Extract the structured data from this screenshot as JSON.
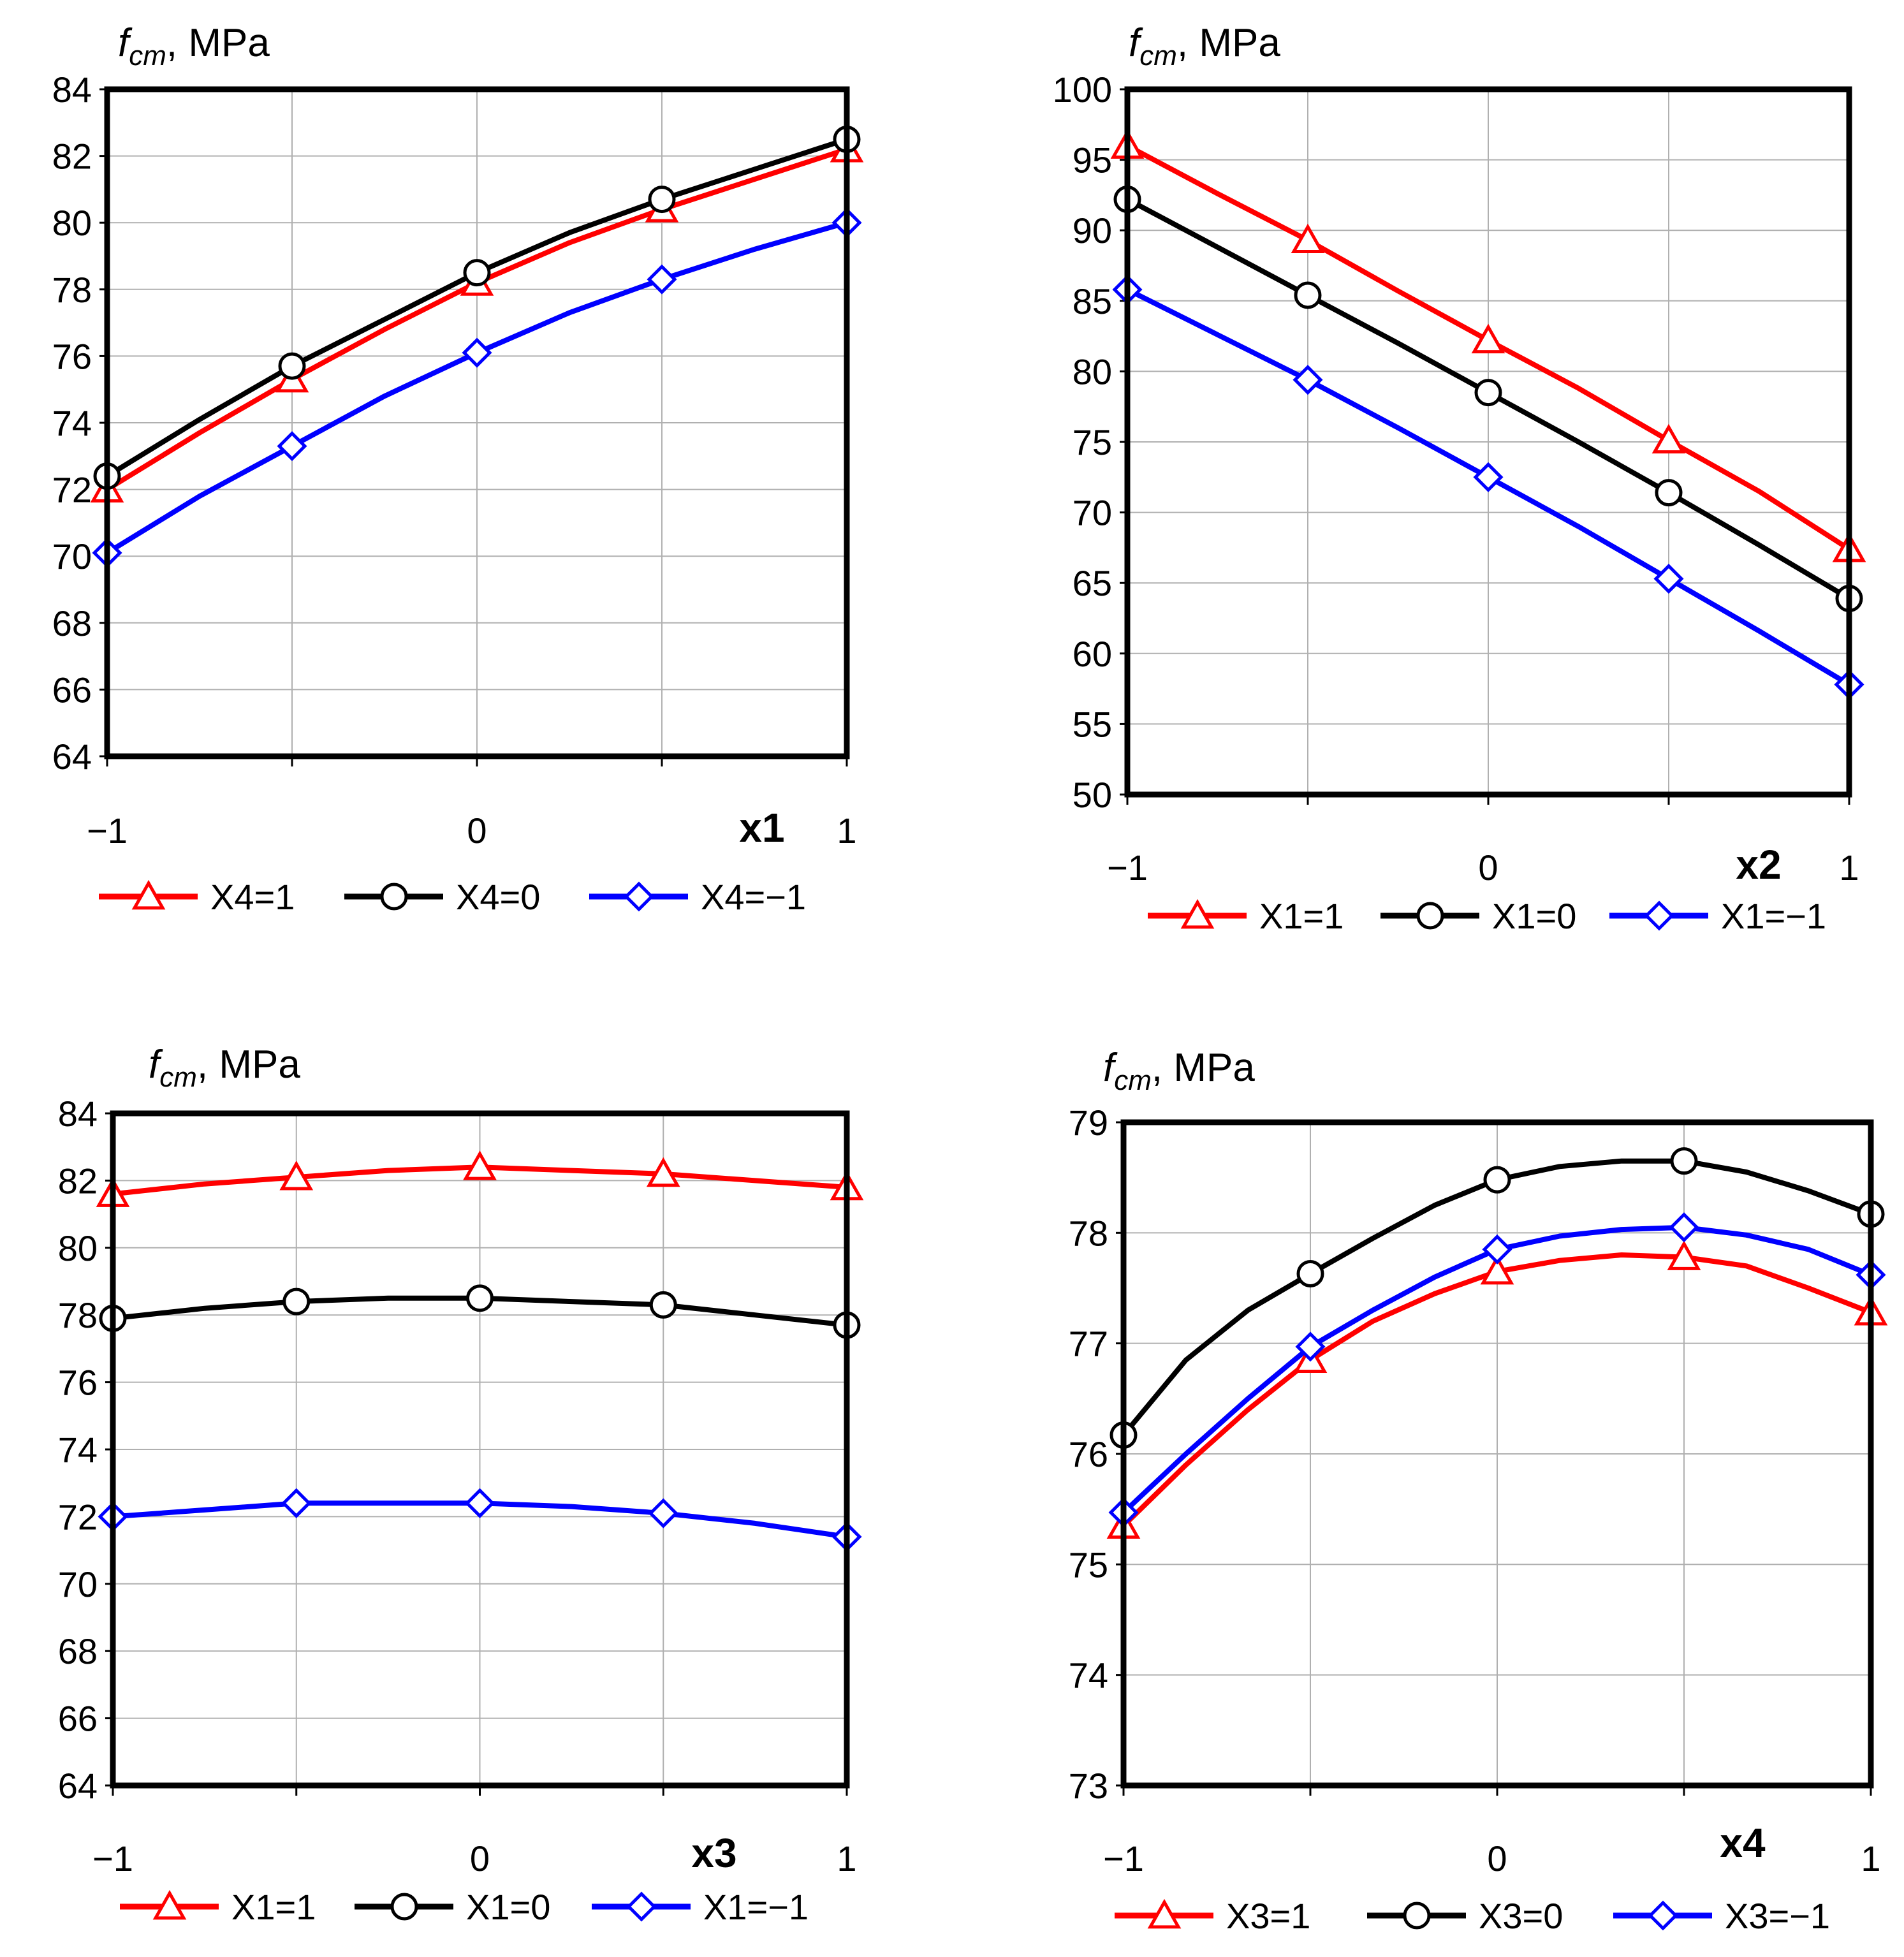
{
  "colors": {
    "red": "#ff0000",
    "black": "#000000",
    "blue": "#0000ff",
    "grid": "#b0b0b0"
  },
  "chart_data": [
    {
      "type": "line",
      "ylabel": {
        "f": "f",
        "sub": "cm",
        "unit": ", MPa"
      },
      "xlabel": "x1",
      "xlim": [
        -1,
        1
      ],
      "ylim": [
        64,
        84
      ],
      "xticks": [
        -1,
        0,
        1
      ],
      "xtick_labels": [
        "−1",
        "0",
        "1"
      ],
      "xgrid": [
        -0.5,
        0,
        0.5
      ],
      "yticks": [
        64,
        66,
        68,
        70,
        72,
        74,
        76,
        78,
        80,
        82,
        84
      ],
      "ytick_labels": [
        "64",
        "66",
        "68",
        "70",
        "72",
        "74",
        "76",
        "78",
        "80",
        "82",
        "84"
      ],
      "series": [
        {
          "name": "X4=1",
          "color": "red",
          "marker": "triangle",
          "x": [
            -1,
            -0.75,
            -0.5,
            -0.25,
            0,
            0.25,
            0.5,
            0.75,
            1
          ],
          "y": [
            72.0,
            73.7,
            75.3,
            76.8,
            78.2,
            79.4,
            80.4,
            81.3,
            82.2
          ],
          "marker_x": [
            -1,
            -0.5,
            0,
            0.5,
            1
          ],
          "marker_y": [
            72.0,
            75.3,
            78.2,
            80.4,
            82.2
          ]
        },
        {
          "name": "X4=0",
          "color": "black",
          "marker": "circle",
          "x": [
            -1,
            -0.75,
            -0.5,
            -0.25,
            0,
            0.25,
            0.5,
            0.75,
            1
          ],
          "y": [
            72.4,
            74.1,
            75.7,
            77.1,
            78.5,
            79.7,
            80.7,
            81.6,
            82.5
          ],
          "marker_x": [
            -1,
            -0.5,
            0,
            0.5,
            1
          ],
          "marker_y": [
            72.4,
            75.7,
            78.5,
            80.7,
            82.5
          ]
        },
        {
          "name": "X4=−1",
          "color": "blue",
          "marker": "diamond",
          "x": [
            -1,
            -0.75,
            -0.5,
            -0.25,
            0,
            0.25,
            0.5,
            0.75,
            1
          ],
          "y": [
            70.1,
            71.8,
            73.3,
            74.8,
            76.1,
            77.3,
            78.3,
            79.2,
            80.0
          ],
          "marker_x": [
            -1,
            -0.5,
            0,
            0.5,
            1
          ],
          "marker_y": [
            70.1,
            73.3,
            76.1,
            78.3,
            80.0
          ]
        }
      ]
    },
    {
      "type": "line",
      "ylabel": {
        "f": "f",
        "sub": "cm",
        "unit": ", MPa"
      },
      "xlabel": "x2",
      "xlim": [
        -1,
        1
      ],
      "ylim": [
        50,
        100
      ],
      "xticks": [
        -1,
        0,
        1
      ],
      "xtick_labels": [
        "−1",
        "0",
        "1"
      ],
      "xgrid": [
        -0.5,
        0,
        0.5
      ],
      "yticks": [
        50,
        55,
        60,
        65,
        70,
        75,
        80,
        85,
        90,
        95,
        100
      ],
      "ytick_labels": [
        "50",
        "55",
        "60",
        "65",
        "70",
        "75",
        "80",
        "85",
        "90",
        "95",
        "100"
      ],
      "series": [
        {
          "name": "X1=1",
          "color": "red",
          "marker": "triangle",
          "x": [
            -1,
            -0.75,
            -0.5,
            -0.25,
            0,
            0.25,
            0.5,
            0.75,
            1
          ],
          "y": [
            96.0,
            92.6,
            89.3,
            85.7,
            82.2,
            78.8,
            75.1,
            71.5,
            67.4
          ],
          "marker_x": [
            -1,
            -0.5,
            0,
            0.5,
            1
          ],
          "marker_y": [
            96.0,
            89.3,
            82.2,
            75.1,
            67.4
          ]
        },
        {
          "name": "X1=0",
          "color": "black",
          "marker": "circle",
          "x": [
            -1,
            -0.75,
            -0.5,
            -0.25,
            0,
            0.25,
            0.5,
            0.75,
            1
          ],
          "y": [
            92.2,
            88.8,
            85.4,
            82.0,
            78.5,
            75.0,
            71.4,
            67.7,
            63.9
          ],
          "marker_x": [
            -1,
            -0.5,
            0,
            0.5,
            1
          ],
          "marker_y": [
            92.2,
            85.4,
            78.5,
            71.4,
            63.9
          ]
        },
        {
          "name": "X1=−1",
          "color": "blue",
          "marker": "diamond",
          "x": [
            -1,
            -0.75,
            -0.5,
            -0.25,
            0,
            0.25,
            0.5,
            0.75,
            1
          ],
          "y": [
            85.8,
            82.6,
            79.4,
            76.0,
            72.5,
            69.0,
            65.3,
            61.6,
            57.8
          ],
          "marker_x": [
            -1,
            -0.5,
            0,
            0.5,
            1
          ],
          "marker_y": [
            85.8,
            79.4,
            72.5,
            65.3,
            57.8
          ]
        }
      ]
    },
    {
      "type": "line",
      "ylabel": {
        "f": "f",
        "sub": "cm",
        "unit": ", MPa"
      },
      "xlabel": "x3",
      "xlim": [
        -1,
        1
      ],
      "ylim": [
        64,
        84
      ],
      "xticks": [
        -1,
        0,
        1
      ],
      "xtick_labels": [
        "−1",
        "0",
        "1"
      ],
      "xgrid": [
        -0.5,
        0,
        0.5
      ],
      "yticks": [
        64,
        66,
        68,
        70,
        72,
        74,
        76,
        78,
        80,
        82,
        84
      ],
      "ytick_labels": [
        "64",
        "66",
        "68",
        "70",
        "72",
        "74",
        "76",
        "78",
        "80",
        "82",
        "84"
      ],
      "series": [
        {
          "name": "X1=1",
          "color": "red",
          "marker": "triangle",
          "x": [
            -1,
            -0.75,
            -0.5,
            -0.25,
            0,
            0.25,
            0.5,
            0.75,
            1
          ],
          "y": [
            81.6,
            81.9,
            82.1,
            82.3,
            82.4,
            82.3,
            82.2,
            82.0,
            81.8
          ],
          "marker_x": [
            -1,
            -0.5,
            0,
            0.5,
            1
          ],
          "marker_y": [
            81.6,
            82.1,
            82.4,
            82.2,
            81.8
          ]
        },
        {
          "name": "X1=0",
          "color": "black",
          "marker": "circle",
          "x": [
            -1,
            -0.75,
            -0.5,
            -0.25,
            0,
            0.25,
            0.5,
            0.75,
            1
          ],
          "y": [
            77.9,
            78.2,
            78.4,
            78.5,
            78.5,
            78.4,
            78.3,
            78.0,
            77.7
          ],
          "marker_x": [
            -1,
            -0.5,
            0,
            0.5,
            1
          ],
          "marker_y": [
            77.9,
            78.4,
            78.5,
            78.3,
            77.7
          ]
        },
        {
          "name": "X1=−1",
          "color": "blue",
          "marker": "diamond",
          "x": [
            -1,
            -0.75,
            -0.5,
            -0.25,
            0,
            0.25,
            0.5,
            0.75,
            1
          ],
          "y": [
            72.0,
            72.2,
            72.4,
            72.4,
            72.4,
            72.3,
            72.1,
            71.8,
            71.4
          ],
          "marker_x": [
            -1,
            -0.5,
            0,
            0.5,
            1
          ],
          "marker_y": [
            72.0,
            72.4,
            72.4,
            72.1,
            71.4
          ]
        }
      ]
    },
    {
      "type": "line",
      "ylabel": {
        "f": "f",
        "sub": "cm",
        "unit": ", MPa"
      },
      "xlabel": "x4",
      "xlim": [
        -1,
        1
      ],
      "ylim": [
        73,
        79
      ],
      "xticks": [
        -1,
        0,
        1
      ],
      "xtick_labels": [
        "−1",
        "0",
        "1"
      ],
      "xgrid": [
        -0.5,
        0,
        0.5
      ],
      "yticks": [
        73,
        74,
        75,
        76,
        77,
        78,
        79
      ],
      "ytick_labels": [
        "73",
        "74",
        "75",
        "76",
        "77",
        "78",
        "79"
      ],
      "series": [
        {
          "name": "X3=1",
          "color": "red",
          "marker": "triangle",
          "x": [
            -1,
            -0.833,
            -0.667,
            -0.5,
            -0.333,
            -0.167,
            0,
            0.167,
            0.333,
            0.5,
            0.667,
            0.833,
            1
          ],
          "y": [
            75.35,
            75.9,
            76.4,
            76.85,
            77.2,
            77.45,
            77.65,
            77.75,
            77.8,
            77.78,
            77.7,
            77.5,
            77.28
          ],
          "marker_x": [
            -1,
            -0.5,
            0,
            0.5,
            1
          ],
          "marker_y": [
            75.35,
            76.85,
            77.65,
            77.78,
            77.28
          ]
        },
        {
          "name": "X3=0",
          "color": "black",
          "marker": "circle",
          "x": [
            -1,
            -0.833,
            -0.667,
            -0.5,
            -0.333,
            -0.167,
            0,
            0.167,
            0.333,
            0.5,
            0.667,
            0.833,
            1
          ],
          "y": [
            76.17,
            76.85,
            77.3,
            77.63,
            77.95,
            78.25,
            78.48,
            78.6,
            78.65,
            78.65,
            78.55,
            78.38,
            78.17
          ],
          "marker_x": [
            -1,
            -0.5,
            0,
            0.5,
            1
          ],
          "marker_y": [
            76.17,
            77.63,
            78.48,
            78.65,
            78.17
          ]
        },
        {
          "name": "X3=−1",
          "color": "blue",
          "marker": "diamond",
          "x": [
            -1,
            -0.833,
            -0.667,
            -0.5,
            -0.333,
            -0.167,
            0,
            0.167,
            0.333,
            0.5,
            0.667,
            0.833,
            1
          ],
          "y": [
            75.47,
            76.0,
            76.5,
            76.97,
            77.3,
            77.6,
            77.85,
            77.97,
            78.03,
            78.05,
            77.98,
            77.85,
            77.62
          ],
          "marker_x": [
            -1,
            -0.5,
            0,
            0.5,
            1
          ],
          "marker_y": [
            75.47,
            76.97,
            77.85,
            78.05,
            77.62
          ]
        }
      ]
    }
  ]
}
